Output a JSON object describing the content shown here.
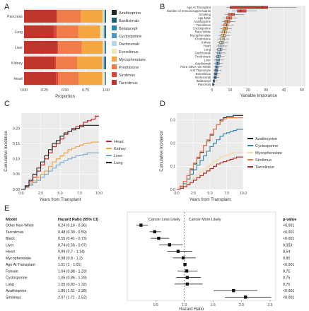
{
  "panels": {
    "A": "A",
    "B": "B",
    "C": "C",
    "D": "D",
    "E": "E"
  },
  "chart_data": [
    {
      "id": "A",
      "type": "bar",
      "orientation": "horizontal-stacked",
      "categories": [
        "Pancreas",
        "Lung",
        "Liver",
        "Kidney",
        "Heart"
      ],
      "xlabel": "Proportion",
      "xlim": [
        0,
        1
      ],
      "xticks": [
        "0.00",
        "0.25",
        "0.50",
        "0.75",
        "1.00"
      ],
      "legend_position": "right",
      "series": [
        {
          "name": "Azathioprine",
          "color": "#1b2a2f",
          "values": [
            0.0,
            0.0,
            0.0,
            0.0,
            0.0
          ]
        },
        {
          "name": "Basiliximab",
          "color": "#1f5f78",
          "values": [
            0.01,
            0.01,
            0.005,
            0.01,
            0.005
          ]
        },
        {
          "name": "Belatacept",
          "color": "#2e86ab",
          "values": [
            0.0,
            0.0,
            0.0,
            0.005,
            0.0
          ]
        },
        {
          "name": "Cyclosporine",
          "color": "#4a98c4",
          "values": [
            0.005,
            0.01,
            0.01,
            0.01,
            0.005
          ]
        },
        {
          "name": "Daclizumab",
          "color": "#b8d8e6",
          "values": [
            0.01,
            0.01,
            0.01,
            0.01,
            0.01
          ]
        },
        {
          "name": "Everolimus",
          "color": "#f2e6b8",
          "values": [
            0.01,
            0.03,
            0.01,
            0.005,
            0.02
          ]
        },
        {
          "name": "Mycophenolate",
          "color": "#f4a640",
          "values": [
            0.22,
            0.22,
            0.22,
            0.26,
            0.25
          ]
        },
        {
          "name": "Prednisone",
          "color": "#f07c4a",
          "values": [
            0.24,
            0.22,
            0.25,
            0.22,
            0.22
          ]
        },
        {
          "name": "Sirolimus",
          "color": "#d9463a",
          "values": [
            0.005,
            0.03,
            0.01,
            0.01,
            0.02
          ]
        },
        {
          "name": "Tacrolimus",
          "color": "#c0362d",
          "values": [
            0.33,
            0.3,
            0.35,
            0.32,
            0.34
          ]
        }
      ]
    },
    {
      "id": "B",
      "type": "box",
      "xlabel": "Variable Imporance",
      "xticks": [
        "0",
        "10",
        "20",
        "30",
        "40",
        "50"
      ],
      "xlim": [
        0,
        52
      ],
      "variables": [
        {
          "name": "Age At Transplant",
          "q1": 10,
          "median": 28,
          "q3": 31,
          "lo": 8,
          "hi": 47
        },
        {
          "name": "Number of Immunosuppressants",
          "q1": 14,
          "median": 16,
          "q3": 19,
          "lo": 11,
          "hi": 25
        },
        {
          "name": "Smoking",
          "q1": 9,
          "median": 11,
          "q3": 12.5,
          "lo": 7,
          "hi": 18
        },
        {
          "name": "Age Male",
          "q1": 8,
          "median": 9.5,
          "q3": 11,
          "lo": 6,
          "hi": 14
        },
        {
          "name": "Azathioprine",
          "q1": 7,
          "median": 8.5,
          "q3": 10,
          "lo": 5.5,
          "hi": 13
        },
        {
          "name": "Tacrolimus",
          "q1": 6.5,
          "median": 8,
          "q3": 9,
          "lo": 5,
          "hi": 12
        },
        {
          "name": "Cyclosporine",
          "q1": 6,
          "median": 7.5,
          "q3": 8.5,
          "lo": 4.5,
          "hi": 11
        },
        {
          "name": "Race White",
          "q1": 5.5,
          "median": 7,
          "q3": 8,
          "lo": 4,
          "hi": 10.5
        },
        {
          "name": "Mycophenolate",
          "q1": 5,
          "median": 6.5,
          "q3": 7.5,
          "lo": 3.5,
          "hi": 10
        },
        {
          "name": "Prednisone",
          "q1": 4.5,
          "median": 6,
          "q3": 7,
          "lo": 3,
          "hi": 9.5
        },
        {
          "name": "Kidney",
          "q1": 4,
          "median": 5.5,
          "q3": 6.5,
          "lo": 3,
          "hi": 9
        },
        {
          "name": "Heart",
          "q1": 3.5,
          "median": 5,
          "q3": 6,
          "lo": 2.5,
          "hi": 8.5
        },
        {
          "name": "Lung",
          "q1": 3,
          "median": 4.5,
          "q3": 5.5,
          "lo": 2,
          "hi": 8
        },
        {
          "name": "Daclizumab",
          "q1": 2.8,
          "median": 4,
          "q3": 5,
          "lo": 2,
          "hi": 7.5
        },
        {
          "name": "Prednisone",
          "q1": 2.5,
          "median": 3.5,
          "q3": 4.5,
          "lo": 1.5,
          "hi": 7
        },
        {
          "name": "Liver",
          "q1": 2.2,
          "median": 3.2,
          "q3": 4.2,
          "lo": 1.2,
          "hi": 6.5
        },
        {
          "name": "Basiliximab",
          "q1": 2,
          "median": 3,
          "q3": 4,
          "lo": 1,
          "hi": 6
        },
        {
          "name": "Race Other non-White",
          "q1": 1.8,
          "median": 2.6,
          "q3": 3.4,
          "lo": 1,
          "hi": 5.5
        },
        {
          "name": "Anti Thymocyte",
          "q1": 1.5,
          "median": 2.3,
          "q3": 3.1,
          "lo": 0.8,
          "hi": 5
        },
        {
          "name": "Everolimus",
          "q1": 1.2,
          "median": 2,
          "q3": 2.8,
          "lo": 0.6,
          "hi": 4.5
        },
        {
          "name": "Bortezomib",
          "q1": 1,
          "median": 1.6,
          "q3": 2.4,
          "lo": 0.5,
          "hi": 4
        },
        {
          "name": "Belatacept",
          "q1": 0.5,
          "median": 1,
          "q3": 1.5,
          "lo": 0.2,
          "hi": 3
        },
        {
          "name": "Pancreas",
          "q1": 0.2,
          "median": 0.5,
          "q3": 0.8,
          "lo": 0,
          "hi": 1.5
        }
      ]
    },
    {
      "id": "C",
      "type": "line",
      "xlabel": "Years from Transplant",
      "ylabel": "Cumulative Incidence",
      "xlim": [
        0,
        10
      ],
      "ylim": [
        0,
        0.25
      ],
      "xticks": [
        "0.0",
        "2.5",
        "5.0",
        "7.5",
        "10.0"
      ],
      "yticks": [
        "0.00",
        "0.05",
        "0.10",
        "0.15",
        "0.20"
      ],
      "legend_position": "right",
      "series": [
        {
          "name": "Heart",
          "color": "#b22222",
          "x": [
            0,
            0.5,
            1,
            1.5,
            2,
            2.5,
            3,
            3.5,
            4,
            4.5,
            5,
            5.5,
            6,
            6.5,
            7,
            7.5,
            8,
            8.5,
            9,
            9.5,
            10
          ],
          "y": [
            0,
            0.01,
            0.025,
            0.04,
            0.06,
            0.08,
            0.1,
            0.12,
            0.14,
            0.15,
            0.165,
            0.18,
            0.19,
            0.2,
            0.205,
            0.21,
            0.22,
            0.225,
            0.23,
            0.24,
            0.24
          ]
        },
        {
          "name": "Kidney",
          "color": "#f0a040",
          "x": [
            0,
            0.5,
            1,
            1.5,
            2,
            2.5,
            3,
            3.5,
            4,
            4.5,
            5,
            5.5,
            6,
            6.5,
            7,
            7.5,
            8,
            8.5,
            9,
            9.5,
            10
          ],
          "y": [
            0,
            0.008,
            0.018,
            0.028,
            0.04,
            0.05,
            0.06,
            0.075,
            0.09,
            0.1,
            0.11,
            0.12,
            0.13,
            0.135,
            0.14,
            0.145,
            0.15,
            0.152,
            0.155,
            0.155,
            0.155
          ]
        },
        {
          "name": "Liver",
          "color": "#7aa7cc",
          "x": [
            0,
            0.5,
            1,
            1.5,
            2,
            2.5,
            3,
            3.5,
            4,
            4.5,
            5,
            5.5,
            6,
            6.5,
            7,
            7.5,
            8,
            8.5,
            9,
            9.5,
            10
          ],
          "y": [
            0,
            0.006,
            0.014,
            0.022,
            0.03,
            0.04,
            0.05,
            0.06,
            0.07,
            0.08,
            0.088,
            0.095,
            0.1,
            0.105,
            0.11,
            0.112,
            0.115,
            0.12,
            0.12,
            0.12,
            0.12
          ]
        },
        {
          "name": "Lung",
          "color": "#222222",
          "x": [
            0,
            0.5,
            1,
            1.5,
            2,
            2.5,
            3,
            3.5,
            4,
            4.5,
            5,
            5.5,
            6,
            6.5,
            7,
            7.5,
            8,
            8.5,
            9,
            9.5,
            10
          ],
          "y": [
            0,
            0.012,
            0.03,
            0.05,
            0.07,
            0.09,
            0.11,
            0.13,
            0.15,
            0.16,
            0.175,
            0.185,
            0.19,
            0.195,
            0.2,
            0.205,
            0.21,
            0.21,
            0.21,
            0.21,
            0.21
          ]
        }
      ]
    },
    {
      "id": "D",
      "type": "line",
      "xlabel": "Years from Transplant",
      "ylabel": "Cumulative Incidence",
      "xlim": [
        0,
        10
      ],
      "ylim": [
        0,
        0.33
      ],
      "xticks": [
        "0.0",
        "2.5",
        "5.0",
        "7.5",
        "10.0"
      ],
      "yticks": [
        "0.0",
        "0.1",
        "0.2",
        "0.3"
      ],
      "legend_position": "right",
      "series": [
        {
          "name": "Azathioprine",
          "color": "#222222",
          "x": [
            0,
            0.5,
            1,
            1.5,
            2,
            2.5,
            3,
            3.5,
            4,
            4.5,
            5,
            5.5,
            6,
            6.5,
            7,
            7.5,
            8,
            8.5,
            9,
            9.5,
            10
          ],
          "y": [
            0,
            0.015,
            0.035,
            0.06,
            0.085,
            0.11,
            0.135,
            0.16,
            0.19,
            0.21,
            0.235,
            0.26,
            0.28,
            0.3,
            0.31,
            0.315,
            0.315,
            0.32,
            0.32,
            0.32,
            0.32
          ]
        },
        {
          "name": "Cyclosporine",
          "color": "#2e86ab",
          "x": [
            0,
            0.5,
            1,
            1.5,
            2,
            2.5,
            3,
            3.5,
            4,
            4.5,
            5,
            5.5,
            6,
            6.5,
            7,
            7.5,
            8,
            8.5,
            9,
            9.5,
            10
          ],
          "y": [
            0,
            0.01,
            0.025,
            0.045,
            0.065,
            0.085,
            0.105,
            0.125,
            0.145,
            0.165,
            0.185,
            0.2,
            0.215,
            0.23,
            0.24,
            0.245,
            0.25,
            0.255,
            0.26,
            0.26,
            0.26
          ]
        },
        {
          "name": "Mycophenolate",
          "color": "#f5d9a0",
          "x": [
            0,
            0.5,
            1,
            1.5,
            2,
            2.5,
            3,
            3.5,
            4,
            4.5,
            5,
            5.5,
            6,
            6.5,
            7,
            7.5,
            8,
            8.5,
            9,
            9.5,
            10
          ],
          "y": [
            0,
            0.007,
            0.016,
            0.027,
            0.04,
            0.052,
            0.064,
            0.076,
            0.088,
            0.1,
            0.11,
            0.12,
            0.13,
            0.14,
            0.145,
            0.15,
            0.155,
            0.16,
            0.16,
            0.16,
            0.16
          ]
        },
        {
          "name": "Sirolimus",
          "color": "#f07c4a",
          "x": [
            0,
            0.5,
            1,
            1.5,
            2,
            2.5,
            3,
            3.5,
            4,
            4.5,
            5,
            5.5,
            6,
            6.5,
            7,
            7.5,
            8,
            8.5,
            9,
            9.5,
            10
          ],
          "y": [
            0,
            0.015,
            0.035,
            0.06,
            0.09,
            0.115,
            0.14,
            0.165,
            0.19,
            0.215,
            0.24,
            0.26,
            0.28,
            0.295,
            0.305,
            0.31,
            0.31,
            0.31,
            0.31,
            0.31,
            0.31
          ]
        },
        {
          "name": "Tacrolimus",
          "color": "#b22222",
          "x": [
            0,
            0.5,
            1,
            1.5,
            2,
            2.5,
            3,
            3.5,
            4,
            4.5,
            5,
            5.5,
            6,
            6.5,
            7,
            7.5,
            8,
            8.5,
            9,
            9.5,
            10
          ],
          "y": [
            0,
            0.005,
            0.012,
            0.02,
            0.03,
            0.04,
            0.05,
            0.06,
            0.07,
            0.08,
            0.09,
            0.1,
            0.11,
            0.115,
            0.12,
            0.125,
            0.13,
            0.135,
            0.14,
            0.14,
            0.14
          ]
        }
      ]
    },
    {
      "id": "E",
      "type": "forest",
      "xlabel": "Hazard Ratio",
      "xlim": [
        0,
        2.6
      ],
      "xticks": [
        "0.5",
        "1.0",
        "1.5",
        "2.0",
        "2.5"
      ],
      "reference_line": 1,
      "left_label": "Cancer Less Likely",
      "right_label": "Cancer More Likely",
      "headers": {
        "model": "Model",
        "hr": "Hazard Ratio (95% CI)",
        "p": "p-value"
      },
      "rows": [
        {
          "model": "Other Non-White",
          "hr_text": "0.24 (0.16 - 0.36)",
          "hr": 0.24,
          "lo": 0.16,
          "hi": 0.36,
          "p": "<0.001"
        },
        {
          "model": "Tacrolimus",
          "hr_text": "0.48 (0.39 - 0.59)",
          "hr": 0.48,
          "lo": 0.39,
          "hi": 0.59,
          "p": "<0.001"
        },
        {
          "model": "Black",
          "hr_text": "0.55 (0.41 - 0.73)",
          "hr": 0.55,
          "lo": 0.41,
          "hi": 0.73,
          "p": "<0.001"
        },
        {
          "model": "Liver",
          "hr_text": "0.74 (0.56 - 0.97)",
          "hr": 0.74,
          "lo": 0.56,
          "hi": 0.97,
          "p": "0.053"
        },
        {
          "model": "Heart",
          "hr_text": "0.89 (0.7 - 1.14)",
          "hr": 0.89,
          "lo": 0.7,
          "hi": 1.14,
          "p": "0.54"
        },
        {
          "model": "Mycophenolate",
          "hr_text": "0.98 (0.8 - 1.2)",
          "hr": 0.98,
          "lo": 0.8,
          "hi": 1.2,
          "p": "0.85"
        },
        {
          "model": "Age At Transplant",
          "hr_text": "1.01 (1 - 1.01)",
          "hr": 1.01,
          "lo": 1.0,
          "hi": 1.01,
          "p": "<0.001"
        },
        {
          "model": "Female",
          "hr_text": "1.04 (0.88 - 1.23)",
          "hr": 1.04,
          "lo": 0.88,
          "hi": 1.23,
          "p": "0.75"
        },
        {
          "model": "Cyclosporine",
          "hr_text": "1.05 (0.86 - 1.29)",
          "hr": 1.05,
          "lo": 0.86,
          "hi": 1.29,
          "p": "0.75"
        },
        {
          "model": "Lung",
          "hr_text": "1.05 (0.83 - 1.32)",
          "hr": 1.05,
          "lo": 0.83,
          "hi": 1.32,
          "p": "0.75"
        },
        {
          "model": "Azathioprine",
          "hr_text": "1.86 (1.51 - 2.28)",
          "hr": 1.86,
          "lo": 1.51,
          "hi": 2.28,
          "p": "<0.001"
        },
        {
          "model": "Sirolimus",
          "hr_text": "2.07 (1.71 - 2.52)",
          "hr": 2.07,
          "lo": 1.71,
          "hi": 2.52,
          "p": "<0.001"
        }
      ]
    }
  ]
}
